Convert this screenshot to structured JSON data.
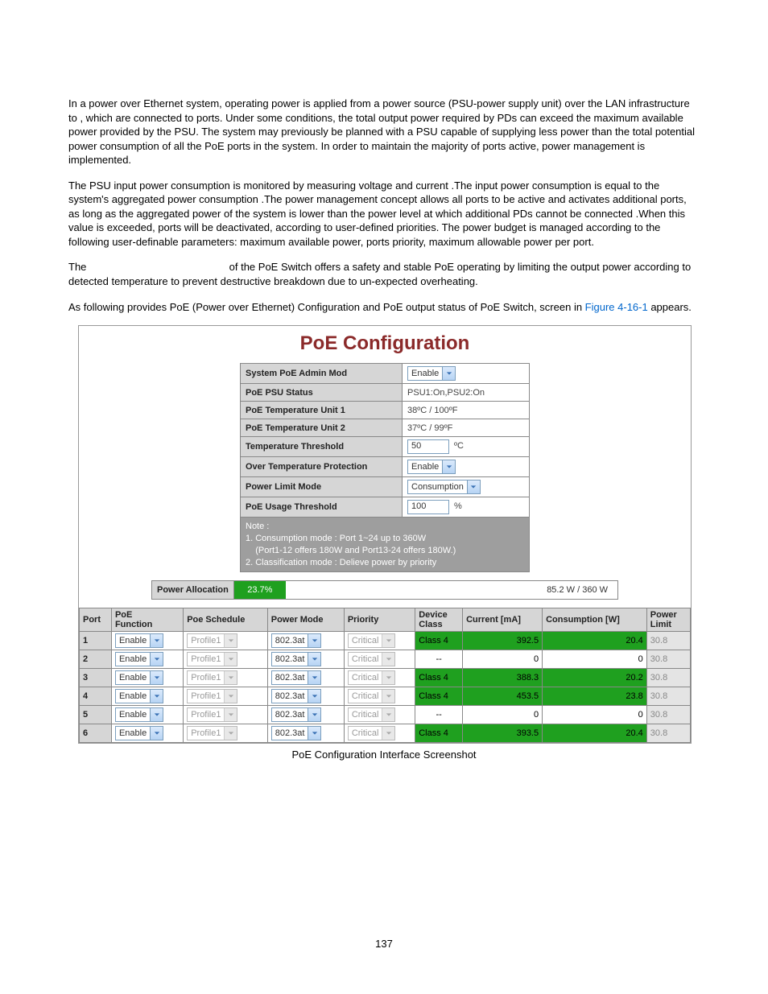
{
  "paragraphs": {
    "p1": "In a power over Ethernet system, operating power is applied from a power source (PSU-power supply unit) over the LAN infrastructure to                                              , which are connected to ports. Under some conditions, the total output power required by PDs can exceed the maximum available power provided by the PSU. The system may previously be planned with a PSU capable of supplying less power than the total potential power consumption of all the PoE ports in the system. In order to maintain the majority of ports active, power management is implemented.",
    "p2": "The PSU input power consumption is monitored by measuring voltage and current .The input power consumption is equal to the system's aggregated power consumption .The power management concept allows all ports to be active and activates additional ports, as long as the aggregated power of the system is lower than the power level at which additional PDs cannot be connected .When this value is exceeded, ports will be deactivated, according to user-defined priorities. The power budget is managed according to the following user-definable parameters: maximum available power, ports priority, maximum allowable power per port.",
    "p3a": "The ",
    "p3b": " of the PoE Switch offers a safety and stable PoE operating by limiting the output power according to detected temperature to prevent destructive breakdown due to un-expected overheating.",
    "p4a": "As following provides PoE (Power over Ethernet) Configuration and PoE output status of PoE Switch, screen in ",
    "p4link": "Figure 4-16-1",
    "p4b": " appears."
  },
  "screenshot": {
    "title": "PoE Configuration",
    "config": {
      "rows": [
        {
          "label": "System PoE Admin Mod",
          "type": "select",
          "value": "Enable"
        },
        {
          "label": "PoE PSU Status",
          "type": "text",
          "value": "PSU1:On,PSU2:On"
        },
        {
          "label": "PoE Temperature Unit 1",
          "type": "text",
          "value": "38ºC / 100ºF"
        },
        {
          "label": "PoE Temperature Unit 2",
          "type": "text",
          "value": "37ºC / 99ºF"
        },
        {
          "label": "Temperature Threshold",
          "type": "input",
          "value": "50",
          "unit": "ºC"
        },
        {
          "label": "Over Temperature Protection",
          "type": "select",
          "value": "Enable"
        },
        {
          "label": "Power Limit Mode",
          "type": "select",
          "value": "Consumption"
        },
        {
          "label": "PoE Usage Threshold",
          "type": "input",
          "value": "100",
          "unit": "%"
        }
      ],
      "note": "Note :\n1. Consumption mode : Port 1~24 up to 360W\n    (Port1-12 offers 180W and Port13-24 offers 180W.)\n2. Classification mode : Delieve power by priority"
    },
    "allocation": {
      "label": "Power Allocation",
      "percent_text": "23.7%",
      "percent_width": 17,
      "summary": "85.2 W / 360 W"
    },
    "port_table": {
      "headers": [
        "Port",
        "PoE Function",
        "Poe Schedule",
        "Power Mode",
        "Priority",
        "Device Class",
        "Current [mA]",
        "Consumption [W]",
        "Power Limit"
      ],
      "poe_func": "Enable",
      "schedule": "Profile1",
      "power_mode": "802.3at",
      "priority": "Critical",
      "power_limit": "30.8",
      "rows": [
        {
          "port": "1",
          "class": "Class 4",
          "current": "392.5",
          "cons": "20.4",
          "active": true
        },
        {
          "port": "2",
          "class": "--",
          "current": "0",
          "cons": "0",
          "active": false
        },
        {
          "port": "3",
          "class": "Class 4",
          "current": "388.3",
          "cons": "20.2",
          "active": true
        },
        {
          "port": "4",
          "class": "Class 4",
          "current": "453.5",
          "cons": "23.8",
          "active": true
        },
        {
          "port": "5",
          "class": "--",
          "current": "0",
          "cons": "0",
          "active": false
        },
        {
          "port": "6",
          "class": "Class 4",
          "current": "393.5",
          "cons": "20.4",
          "active": true
        }
      ]
    },
    "caption": "PoE Configuration Interface Screenshot"
  },
  "page_number": "137",
  "colors": {
    "title": "#8b2a2a",
    "header_bg": "#d6d6d6",
    "active_green": "#1fa01f",
    "note_bg": "#9e9e9e",
    "link": "#0066cc"
  }
}
